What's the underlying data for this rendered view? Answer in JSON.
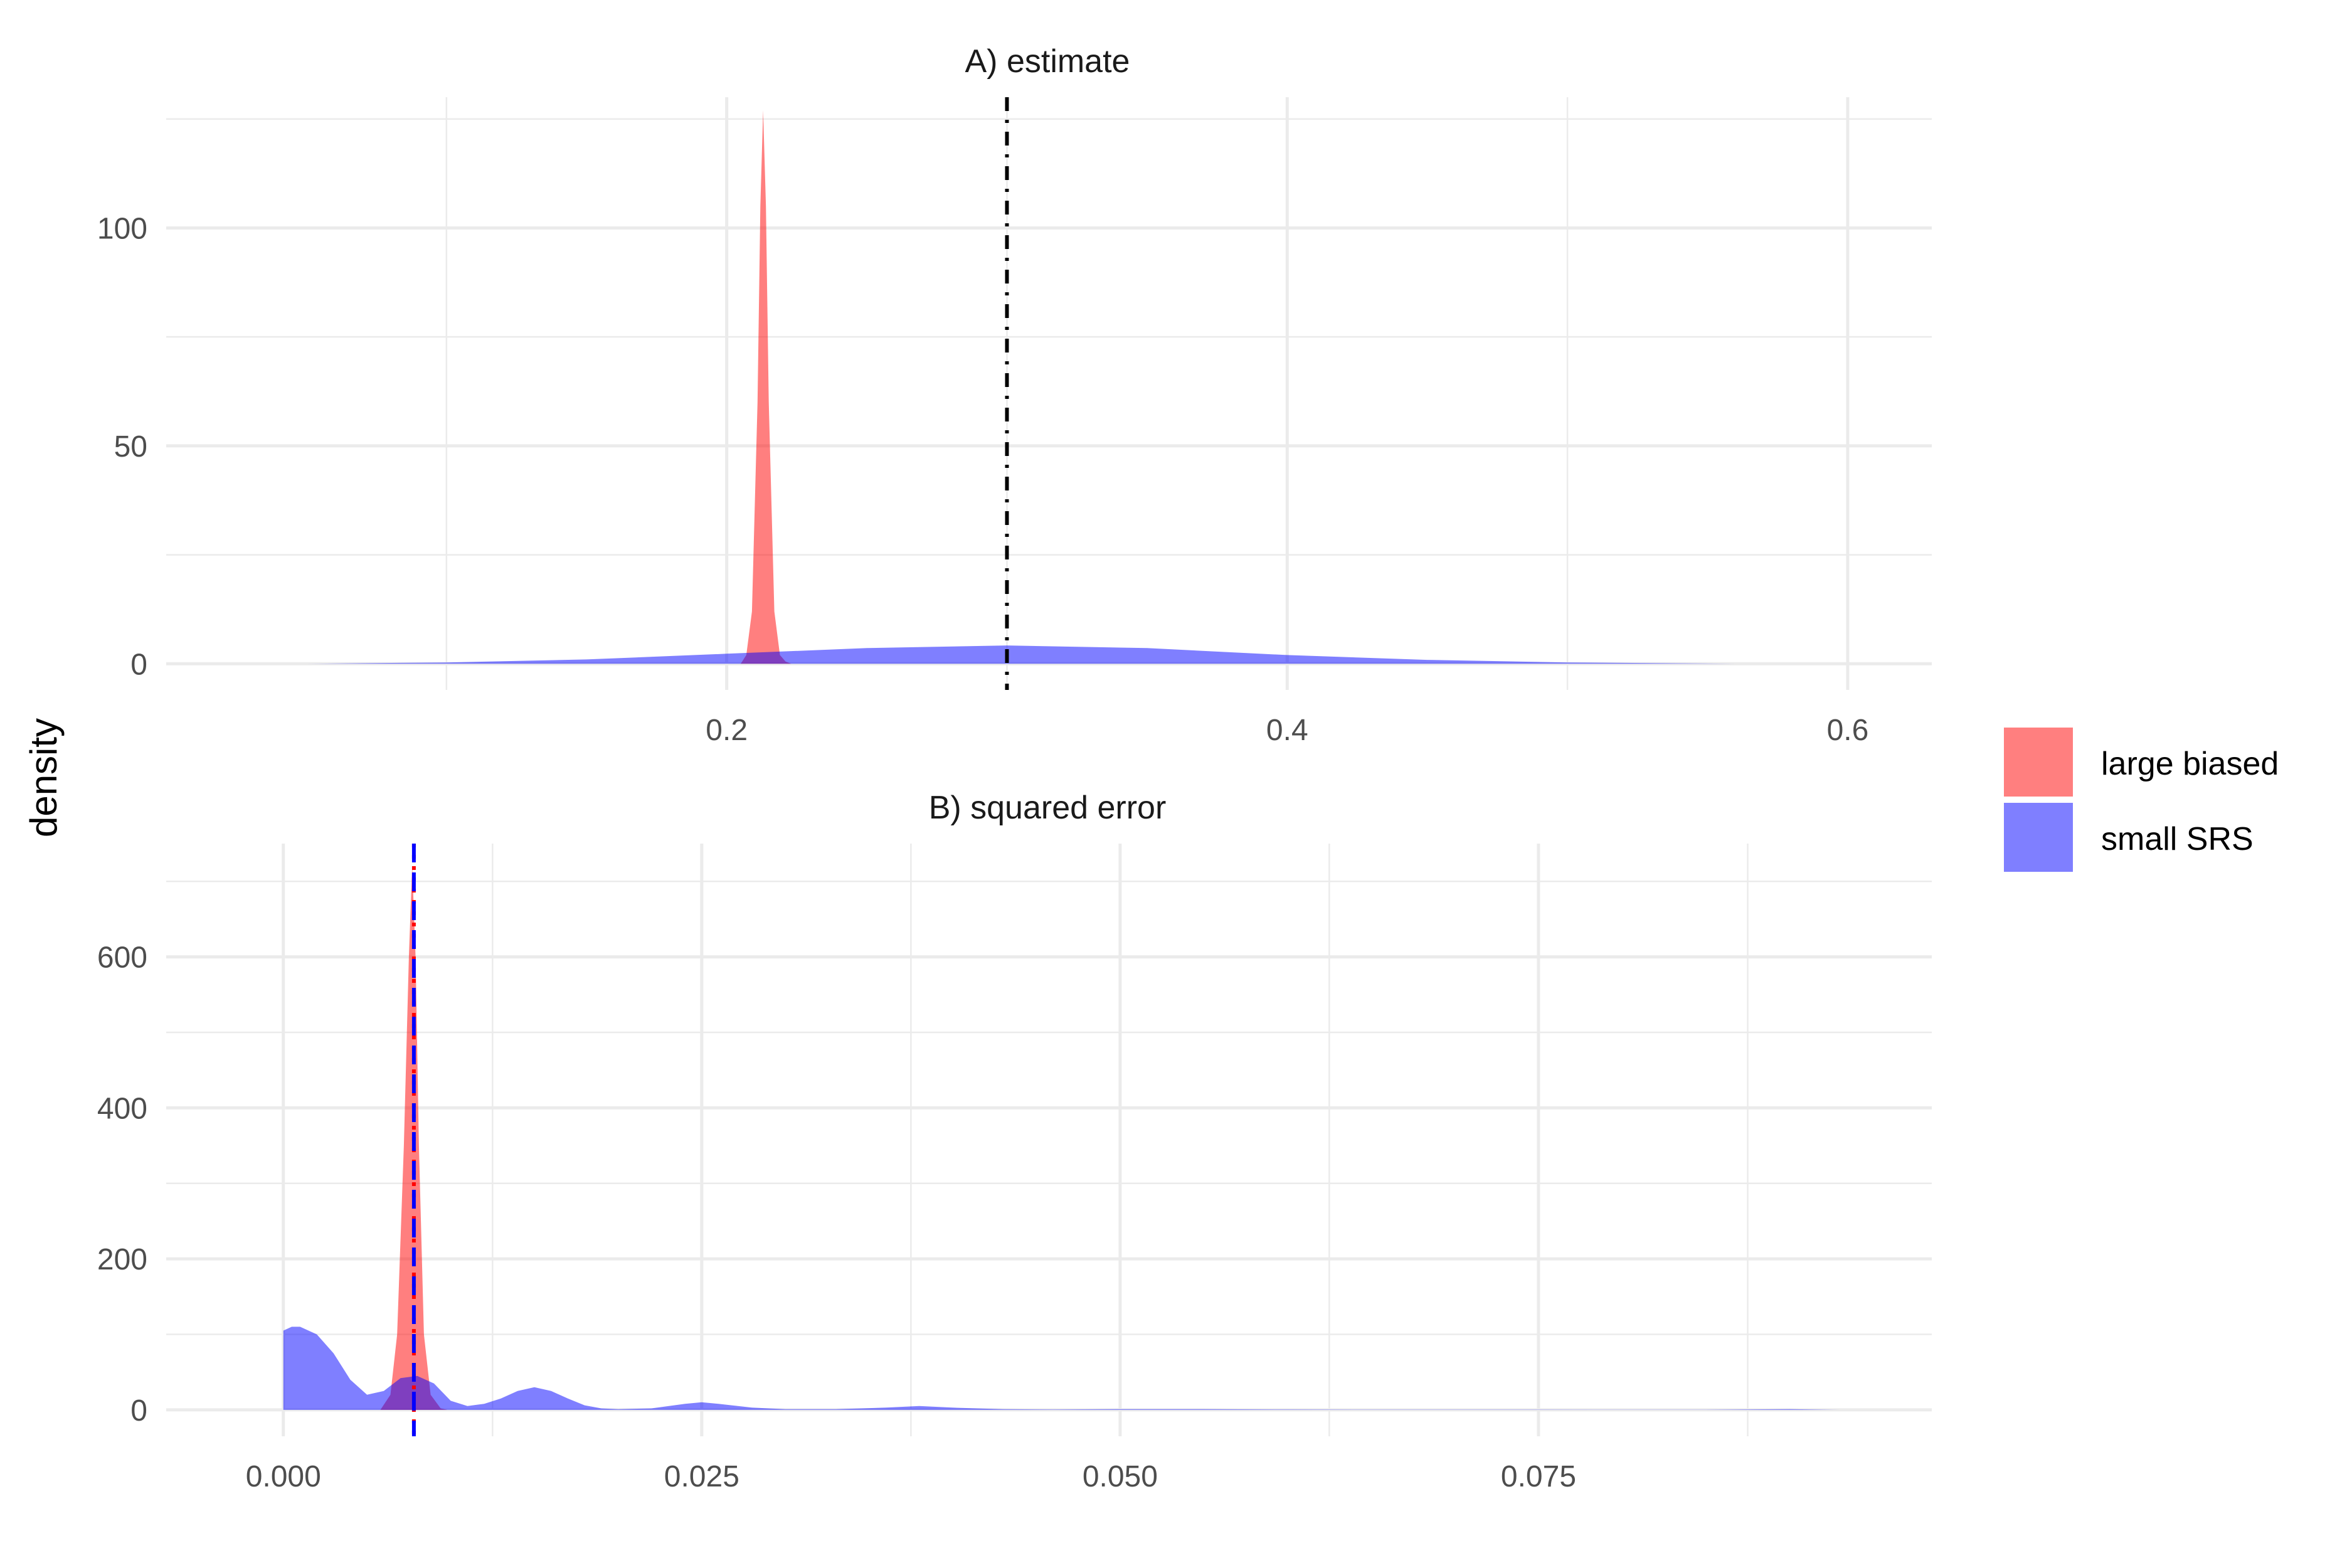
{
  "y_axis_title": "density",
  "legend": {
    "entries": [
      {
        "label": "large biased",
        "color": "#ff0000",
        "alpha": 0.5
      },
      {
        "label": "small SRS",
        "color": "#0000ff",
        "alpha": 0.5
      }
    ]
  },
  "chart_data": [
    {
      "type": "area",
      "title": "A) estimate",
      "xlabel": "",
      "ylabel": "density",
      "xlim": [
        0.0,
        0.63
      ],
      "ylim": [
        -6,
        130
      ],
      "x_ticks": [
        0.2,
        0.4,
        0.6
      ],
      "x_tick_labels": [
        "0.2",
        "0.4",
        "0.6"
      ],
      "y_ticks": [
        0,
        50,
        100
      ],
      "y_tick_labels": [
        "0",
        "50",
        "100"
      ],
      "grid": true,
      "legend_position": "right",
      "reference_lines": [
        {
          "x": 0.3,
          "color": "#000000",
          "style": "dashdot"
        }
      ],
      "series": [
        {
          "name": "large biased",
          "color": "#ff0000",
          "x": [
            0.205,
            0.207,
            0.209,
            0.211,
            0.212,
            0.213,
            0.214,
            0.215,
            0.217,
            0.219,
            0.221,
            0.223
          ],
          "y": [
            0,
            2,
            12,
            60,
            105,
            127,
            105,
            60,
            12,
            2,
            0.5,
            0
          ]
        },
        {
          "name": "small SRS",
          "color": "#0000ff",
          "x": [
            0.05,
            0.1,
            0.15,
            0.2,
            0.25,
            0.3,
            0.35,
            0.4,
            0.45,
            0.5,
            0.56
          ],
          "y": [
            0,
            0.3,
            1.0,
            2.3,
            3.6,
            4.2,
            3.6,
            2.0,
            0.9,
            0.3,
            0
          ]
        }
      ]
    },
    {
      "type": "area",
      "title": "B) squared error",
      "xlabel": "",
      "ylabel": "density",
      "xlim": [
        -0.007,
        0.0985
      ],
      "ylim": [
        -35,
        750
      ],
      "x_ticks": [
        0.0,
        0.025,
        0.05,
        0.075
      ],
      "x_tick_labels": [
        "0.000",
        "0.025",
        "0.050",
        "0.075"
      ],
      "y_ticks": [
        0,
        200,
        400,
        600
      ],
      "y_tick_labels": [
        "0",
        "200",
        "400",
        "600"
      ],
      "grid": true,
      "legend_position": "right",
      "reference_lines": [
        {
          "x": 0.0078,
          "color": "#ff0000",
          "style": "dotted"
        },
        {
          "x": 0.0078,
          "color": "#0000ff",
          "style": "dashed"
        }
      ],
      "series": [
        {
          "name": "large biased",
          "color": "#ff0000",
          "x": [
            0.0058,
            0.0064,
            0.0068,
            0.0072,
            0.0075,
            0.0077,
            0.0079,
            0.0081,
            0.0084,
            0.0088,
            0.0094,
            0.0098
          ],
          "y": [
            0,
            20,
            100,
            350,
            600,
            720,
            600,
            350,
            100,
            20,
            2,
            0
          ]
        },
        {
          "name": "small SRS",
          "color": "#0000ff",
          "x": [
            0.0,
            0.0005,
            0.001,
            0.002,
            0.003,
            0.004,
            0.005,
            0.006,
            0.007,
            0.008,
            0.009,
            0.01,
            0.011,
            0.012,
            0.013,
            0.014,
            0.015,
            0.016,
            0.017,
            0.018,
            0.019,
            0.02,
            0.022,
            0.024,
            0.025,
            0.026,
            0.028,
            0.03,
            0.033,
            0.036,
            0.038,
            0.04,
            0.043,
            0.046,
            0.05,
            0.055,
            0.06,
            0.065,
            0.07,
            0.075,
            0.08,
            0.085,
            0.09,
            0.093
          ],
          "y": [
            105,
            110,
            110,
            100,
            75,
            40,
            20,
            25,
            42,
            45,
            35,
            12,
            5,
            8,
            15,
            25,
            30,
            25,
            15,
            6,
            2,
            1,
            2,
            8,
            10,
            8,
            3,
            1,
            1,
            3,
            5,
            3,
            1,
            0.5,
            1,
            1,
            0.5,
            0.3,
            0.3,
            0.3,
            0.2,
            0.2,
            1,
            0
          ]
        }
      ]
    }
  ]
}
